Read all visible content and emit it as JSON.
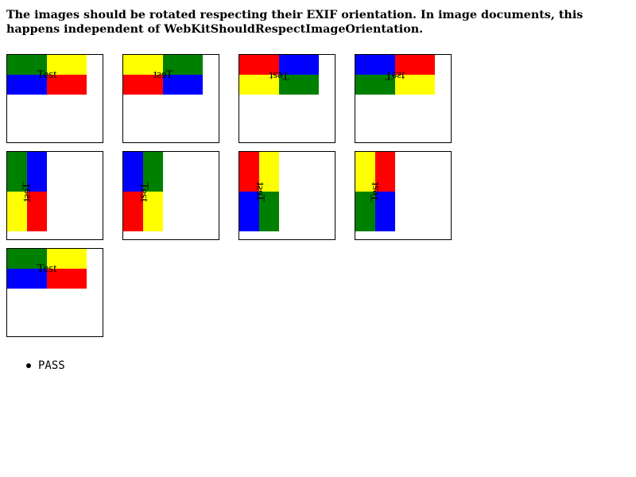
{
  "heading": "The images should be rotated respecting their EXIF orientation. In image documents, this happens independent of WebKitShouldRespectImageOrientation.",
  "image_label": "Test",
  "result": "PASS",
  "colors": {
    "green": "#008000",
    "yellow": "#ffff00",
    "blue": "#0000ff",
    "red": "#ff0000",
    "border": "#000000"
  },
  "images": [
    {
      "name": "orientation-1",
      "quadrants": [
        "green",
        "yellow",
        "blue",
        "red"
      ],
      "tall": false,
      "label_transform": "none"
    },
    {
      "name": "orientation-2",
      "quadrants": [
        "yellow",
        "green",
        "red",
        "blue"
      ],
      "tall": false,
      "label_transform": "scaleX(-1)"
    },
    {
      "name": "orientation-3",
      "quadrants": [
        "red",
        "blue",
        "yellow",
        "green"
      ],
      "tall": false,
      "label_transform": "rotate(180deg)"
    },
    {
      "name": "orientation-4",
      "quadrants": [
        "blue",
        "red",
        "green",
        "yellow"
      ],
      "tall": false,
      "label_transform": "scaleY(-1)"
    },
    {
      "name": "orientation-5",
      "quadrants": [
        "green",
        "blue",
        "yellow",
        "red"
      ],
      "tall": true,
      "label_transform": "rotate(90deg) scaleY(-1)"
    },
    {
      "name": "orientation-6",
      "quadrants": [
        "blue",
        "green",
        "red",
        "yellow"
      ],
      "tall": true,
      "label_transform": "rotate(90deg)"
    },
    {
      "name": "orientation-7",
      "quadrants": [
        "red",
        "yellow",
        "blue",
        "green"
      ],
      "tall": true,
      "label_transform": "rotate(-90deg) scaleY(-1)"
    },
    {
      "name": "orientation-8",
      "quadrants": [
        "yellow",
        "red",
        "green",
        "blue"
      ],
      "tall": true,
      "label_transform": "rotate(-90deg)"
    },
    {
      "name": "orientation-9",
      "quadrants": [
        "green",
        "yellow",
        "blue",
        "red"
      ],
      "tall": false,
      "label_transform": "none"
    }
  ]
}
